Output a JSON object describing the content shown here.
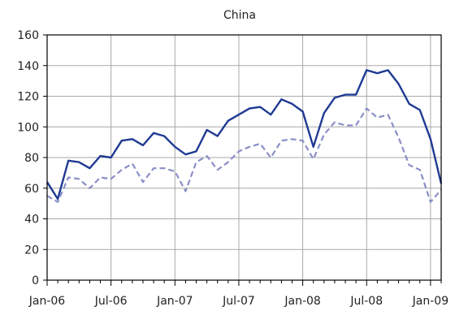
{
  "chart_data": {
    "type": "line",
    "title": "China",
    "xlabel": "",
    "ylabel": "",
    "ylim": [
      0,
      160
    ],
    "y_ticks": [
      "0",
      "20",
      "40",
      "60",
      "80",
      "100",
      "120",
      "140",
      "160"
    ],
    "x_ticks": [
      "Jan-06",
      "Jul-06",
      "Jan-07",
      "Jul-07",
      "Jan-08",
      "Jul-08",
      "Jan-09"
    ],
    "grid": true,
    "legend": "none",
    "x": [
      "2006-01",
      "2006-02",
      "2006-03",
      "2006-04",
      "2006-05",
      "2006-06",
      "2006-07",
      "2006-08",
      "2006-09",
      "2006-10",
      "2006-11",
      "2006-12",
      "2007-01",
      "2007-02",
      "2007-03",
      "2007-04",
      "2007-05",
      "2007-06",
      "2007-07",
      "2007-08",
      "2007-09",
      "2007-10",
      "2007-11",
      "2007-12",
      "2008-01",
      "2008-02",
      "2008-03",
      "2008-04",
      "2008-05",
      "2008-06",
      "2008-07",
      "2008-08",
      "2008-09",
      "2008-10",
      "2008-11",
      "2008-12",
      "2009-01",
      "2009-02"
    ],
    "series": [
      {
        "style": "solid",
        "color": "#1f3a93",
        "values": [
          64,
          53,
          78,
          77,
          73,
          81,
          80,
          91,
          92,
          88,
          96,
          94,
          87,
          82,
          84,
          98,
          94,
          104,
          108,
          112,
          113,
          108,
          118,
          115,
          110,
          87,
          109,
          119,
          121,
          121,
          137,
          135,
          137,
          128,
          115,
          111,
          92,
          63
        ]
      },
      {
        "style": "dashed",
        "color": "#8a8fc8",
        "values": [
          55,
          51,
          67,
          66,
          60,
          67,
          66,
          72,
          76,
          64,
          73,
          73,
          71,
          58,
          77,
          81,
          72,
          77,
          84,
          87,
          89,
          80,
          91,
          92,
          91,
          79,
          95,
          103,
          101,
          101,
          112,
          106,
          108,
          93,
          75,
          72,
          51,
          59
        ]
      }
    ]
  }
}
